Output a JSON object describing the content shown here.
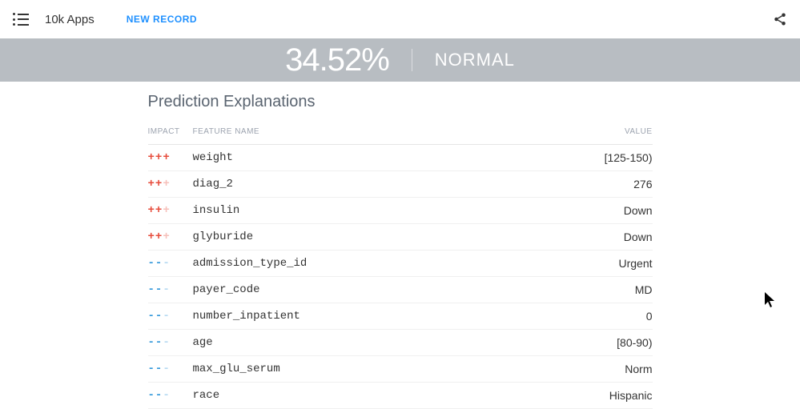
{
  "topbar": {
    "app_title": "10k Apps",
    "new_record": "NEW RECORD"
  },
  "prediction": {
    "value": "34.52%",
    "status": "NORMAL"
  },
  "section": {
    "title": "Prediction Explanations",
    "headers": {
      "impact": "IMPACT",
      "feature": "FEATURE NAME",
      "value": "VALUE"
    }
  },
  "explanations": [
    {
      "sign": "pos",
      "strength": 3,
      "feature": "weight",
      "value": "[125-150)"
    },
    {
      "sign": "pos",
      "strength": 2,
      "feature": "diag_2",
      "value": "276"
    },
    {
      "sign": "pos",
      "strength": 2,
      "feature": "insulin",
      "value": "Down"
    },
    {
      "sign": "pos",
      "strength": 2,
      "feature": "glyburide",
      "value": "Down"
    },
    {
      "sign": "neg",
      "strength": 2,
      "feature": "admission_type_id",
      "value": "Urgent"
    },
    {
      "sign": "neg",
      "strength": 2,
      "feature": "payer_code",
      "value": "MD"
    },
    {
      "sign": "neg",
      "strength": 2,
      "feature": "number_inpatient",
      "value": "0"
    },
    {
      "sign": "neg",
      "strength": 2,
      "feature": "age",
      "value": "[80-90)"
    },
    {
      "sign": "neg",
      "strength": 2,
      "feature": "max_glu_serum",
      "value": "Norm"
    },
    {
      "sign": "neg",
      "strength": 2,
      "feature": "race",
      "value": "Hispanic"
    }
  ],
  "style": {
    "pos_color": "#e74c3c",
    "neg_color": "#3498db",
    "banner_bg": "#b8bdc2",
    "text_muted": "#9ca3af"
  }
}
